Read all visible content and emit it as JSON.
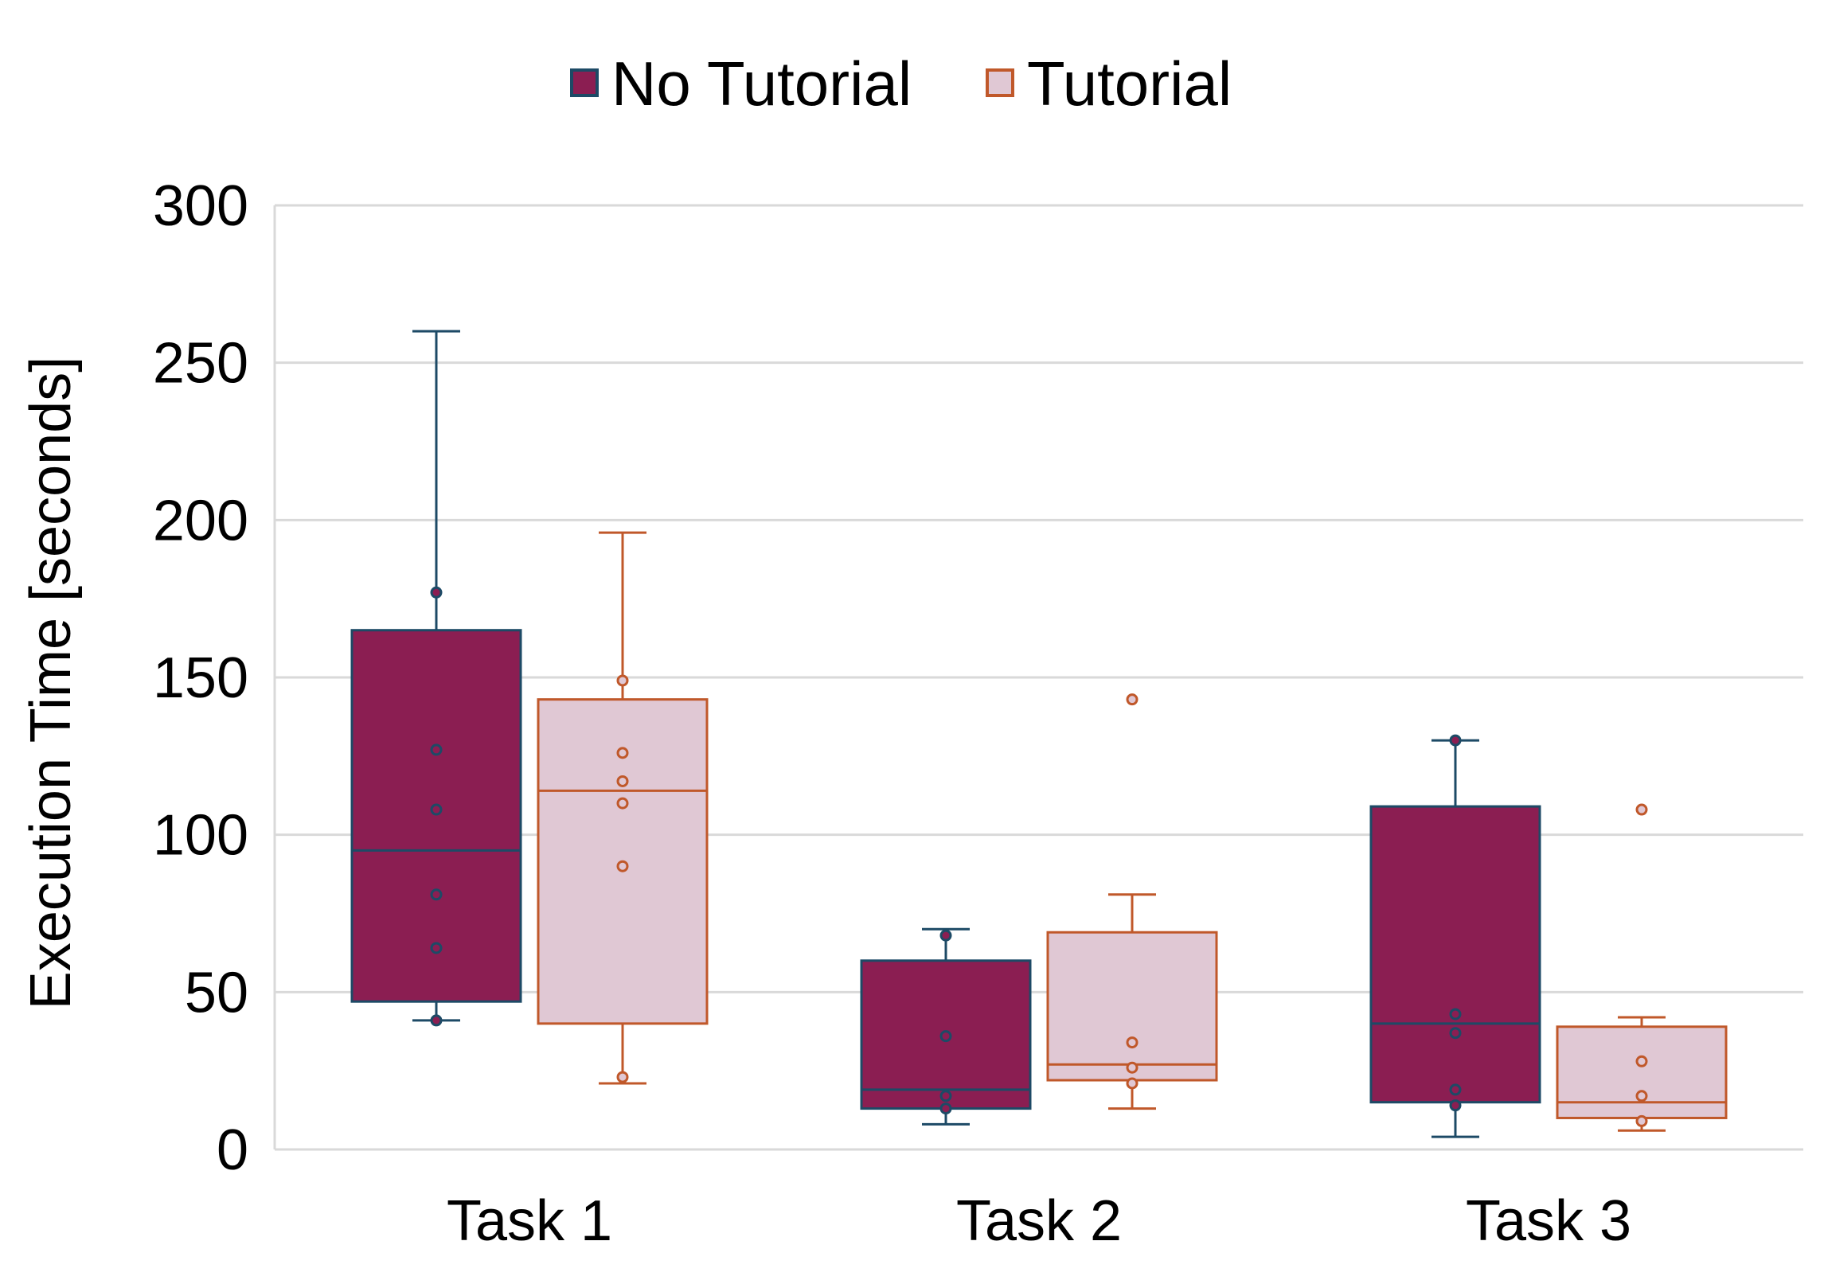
{
  "chart_data": {
    "type": "box",
    "title": "",
    "xlabel": "",
    "ylabel": "Execution Time [seconds]",
    "ylim": [
      0,
      300
    ],
    "yticks": [
      "0",
      "50",
      "100",
      "150",
      "200",
      "250",
      "300"
    ],
    "grid": true,
    "legend_position": "top",
    "categories": [
      "Task 1",
      "Task 2",
      "Task 3"
    ],
    "series": [
      {
        "name": "No Tutorial",
        "fill": "#8B1E52",
        "stroke": "#1D4A66",
        "boxes": [
          {
            "category": "Task 1",
            "min": 41,
            "q1": 47,
            "median": 95,
            "q3": 165,
            "max": 260,
            "points": [
              41,
              64,
              81,
              108,
              127,
              177
            ]
          },
          {
            "category": "Task 2",
            "min": 8,
            "q1": 13,
            "median": 19,
            "q3": 60,
            "max": 70,
            "points": [
              13,
              17,
              36,
              68
            ]
          },
          {
            "category": "Task 3",
            "min": 4,
            "q1": 15,
            "median": 40,
            "q3": 109,
            "max": 130,
            "points": [
              14,
              19,
              37,
              43,
              130
            ]
          }
        ]
      },
      {
        "name": "Tutorial",
        "fill": "#E0C8D4",
        "stroke": "#C0582A",
        "boxes": [
          {
            "category": "Task 1",
            "min": 21,
            "q1": 40,
            "median": 114,
            "q3": 143,
            "max": 196,
            "points": [
              23,
              90,
              110,
              117,
              126,
              149
            ]
          },
          {
            "category": "Task 2",
            "min": 13,
            "q1": 22,
            "median": 27,
            "q3": 69,
            "max": 81,
            "points": [
              21,
              26,
              34,
              143
            ]
          },
          {
            "category": "Task 3",
            "min": 6,
            "q1": 10,
            "median": 15,
            "q3": 39,
            "max": 42,
            "points": [
              9,
              17,
              28,
              108
            ]
          }
        ]
      }
    ]
  },
  "colors": {
    "grid": "#D9D9D9",
    "axis": "#D9D9D9"
  }
}
